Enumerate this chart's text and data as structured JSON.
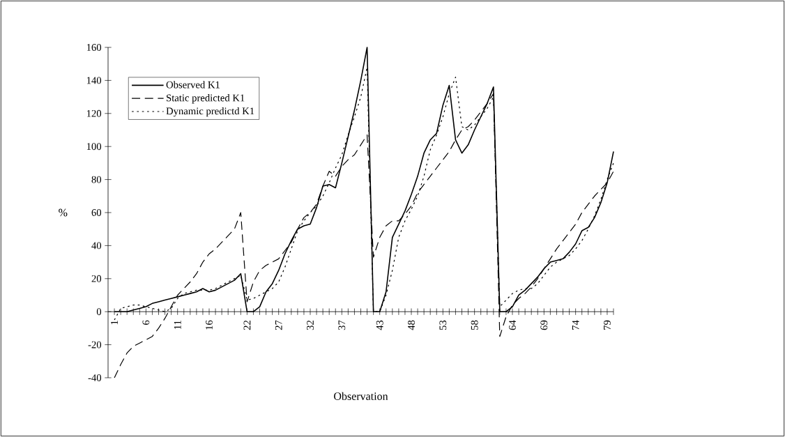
{
  "chart_data": {
    "type": "line",
    "xlabel": "Observation",
    "ylabel": "%",
    "legend": "top left",
    "x": [
      1,
      2,
      3,
      4,
      5,
      6,
      7,
      8,
      9,
      10,
      11,
      12,
      13,
      14,
      15,
      16,
      17,
      18,
      19,
      20,
      21,
      22,
      23,
      24,
      25,
      26,
      27,
      28,
      29,
      30,
      31,
      32,
      33,
      34,
      35,
      36,
      37,
      38,
      39,
      40,
      41,
      42,
      43,
      44,
      45,
      46,
      47,
      48,
      49,
      50,
      51,
      52,
      53,
      54,
      55,
      56,
      57,
      58,
      59,
      60,
      61,
      62,
      63,
      64,
      65,
      66,
      67,
      68,
      69,
      70,
      71,
      72,
      73,
      74,
      75,
      76,
      77,
      78,
      79,
      80
    ],
    "xlim": [
      0,
      80
    ],
    "xticks": [
      1,
      {
        "value": 2,
        "label": null
      },
      {
        "value": 3,
        "label": null
      },
      {
        "value": 4,
        "label": null
      },
      {
        "value": 5,
        "label": null
      },
      6,
      {
        "value": 7,
        "label": null
      },
      {
        "value": 8,
        "label": null
      },
      {
        "value": 9,
        "label": null
      },
      {
        "value": 10,
        "label": null
      },
      11,
      {
        "value": 12,
        "label": null
      },
      {
        "value": 13,
        "label": null
      },
      {
        "value": 14,
        "label": null
      },
      {
        "value": 15,
        "label": null
      },
      16,
      {
        "value": 17,
        "label": null
      },
      {
        "value": 18,
        "label": null
      },
      {
        "value": 19,
        "label": null
      },
      {
        "value": 20,
        "label": null
      },
      {
        "value": 21,
        "label": null
      },
      22,
      {
        "value": 23,
        "label": null
      },
      {
        "value": 24,
        "label": null
      },
      {
        "value": 25,
        "label": null
      },
      {
        "value": 26,
        "label": null
      },
      27,
      {
        "value": 28,
        "label": null
      },
      {
        "value": 29,
        "label": null
      },
      {
        "value": 30,
        "label": null
      },
      {
        "value": 31,
        "label": null
      },
      32,
      {
        "value": 33,
        "label": null
      },
      {
        "value": 34,
        "label": null
      },
      {
        "value": 35,
        "label": null
      },
      {
        "value": 36,
        "label": null
      },
      37,
      {
        "value": 38,
        "label": null
      },
      {
        "value": 39,
        "label": null
      },
      {
        "value": 40,
        "label": null
      },
      {
        "value": 41,
        "label": null
      },
      {
        "value": 42,
        "label": null
      },
      43,
      {
        "value": 44,
        "label": null
      },
      {
        "value": 45,
        "label": null
      },
      {
        "value": 46,
        "label": null
      },
      {
        "value": 47,
        "label": null
      },
      48,
      {
        "value": 49,
        "label": null
      },
      {
        "value": 50,
        "label": null
      },
      {
        "value": 51,
        "label": null
      },
      {
        "value": 52,
        "label": null
      },
      53,
      {
        "value": 54,
        "label": null
      },
      {
        "value": 55,
        "label": null
      },
      {
        "value": 56,
        "label": null
      },
      {
        "value": 57,
        "label": null
      },
      58,
      {
        "value": 59,
        "label": null
      },
      {
        "value": 60,
        "label": null
      },
      {
        "value": 61,
        "label": null
      },
      {
        "value": 62,
        "label": null
      },
      {
        "value": 63,
        "label": null
      },
      64,
      {
        "value": 65,
        "label": null
      },
      {
        "value": 66,
        "label": null
      },
      {
        "value": 67,
        "label": null
      },
      {
        "value": 68,
        "label": null
      },
      69,
      {
        "value": 70,
        "label": null
      },
      {
        "value": 71,
        "label": null
      },
      {
        "value": 72,
        "label": null
      },
      {
        "value": 73,
        "label": null
      },
      74,
      {
        "value": 75,
        "label": null
      },
      {
        "value": 76,
        "label": null
      },
      {
        "value": 77,
        "label": null
      },
      {
        "value": 78,
        "label": null
      },
      79,
      {
        "value": 80,
        "label": null
      }
    ],
    "ylim": [
      -40,
      160
    ],
    "yticks": [
      -40,
      -20,
      0,
      20,
      40,
      60,
      80,
      100,
      120,
      140,
      160
    ],
    "series": [
      {
        "name": "Observed K1",
        "color": "#000000",
        "line_style": "solid",
        "values": [
          0,
          0,
          0,
          1,
          2,
          3,
          5,
          6,
          7,
          8,
          9,
          10,
          11,
          12,
          14,
          12,
          13,
          15,
          17,
          19,
          23,
          0,
          0,
          3,
          12,
          17,
          25,
          35,
          43,
          50,
          52,
          53,
          63,
          76,
          77,
          75,
          90,
          106,
          122,
          140,
          160,
          0,
          0,
          12,
          45,
          53,
          61,
          71,
          82,
          96,
          104,
          108,
          125,
          137,
          104,
          96,
          101,
          110,
          118,
          126,
          136,
          0,
          0,
          3,
          10,
          13,
          17,
          21,
          26,
          30,
          31,
          32,
          36,
          41,
          49,
          51,
          57,
          66,
          78,
          97
        ]
      },
      {
        "name": "Static predicted K1",
        "color": "#000000",
        "line_style": "dashed",
        "values": [
          -40,
          -32,
          -25,
          -21,
          -19,
          -17,
          -15,
          -10,
          -4,
          3,
          10,
          14,
          18,
          23,
          30,
          35,
          38,
          42,
          46,
          50,
          60,
          6,
          18,
          25,
          28,
          30,
          32,
          37,
          42,
          50,
          57,
          60,
          65,
          76,
          85,
          82,
          88,
          92,
          95,
          101,
          107,
          33,
          45,
          52,
          55,
          55,
          59,
          64,
          72,
          77,
          82,
          87,
          92,
          97,
          104,
          110,
          112,
          116,
          121,
          126,
          132,
          -15,
          -3,
          4,
          8,
          11,
          15,
          20,
          26,
          32,
          38,
          43,
          48,
          53,
          60,
          65,
          70,
          74,
          78,
          85
        ]
      },
      {
        "name": "Dynamic predictd K1",
        "color": "#000000",
        "line_style": "dotted",
        "values": [
          -5,
          2,
          3,
          4,
          4,
          3,
          2,
          1,
          0,
          2,
          8,
          11,
          12,
          13,
          13,
          13,
          14,
          16,
          18,
          20,
          22,
          7,
          8,
          10,
          12,
          14,
          18,
          27,
          38,
          49,
          55,
          60,
          64,
          70,
          78,
          87,
          95,
          107,
          118,
          130,
          148,
          0,
          0,
          10,
          25,
          45,
          55,
          62,
          70,
          82,
          98,
          107,
          118,
          132,
          142,
          112,
          110,
          113,
          118,
          123,
          130,
          3,
          7,
          11,
          13,
          14,
          14,
          17,
          22,
          27,
          30,
          32,
          34,
          38,
          43,
          50,
          58,
          68,
          80,
          90
        ]
      }
    ]
  }
}
